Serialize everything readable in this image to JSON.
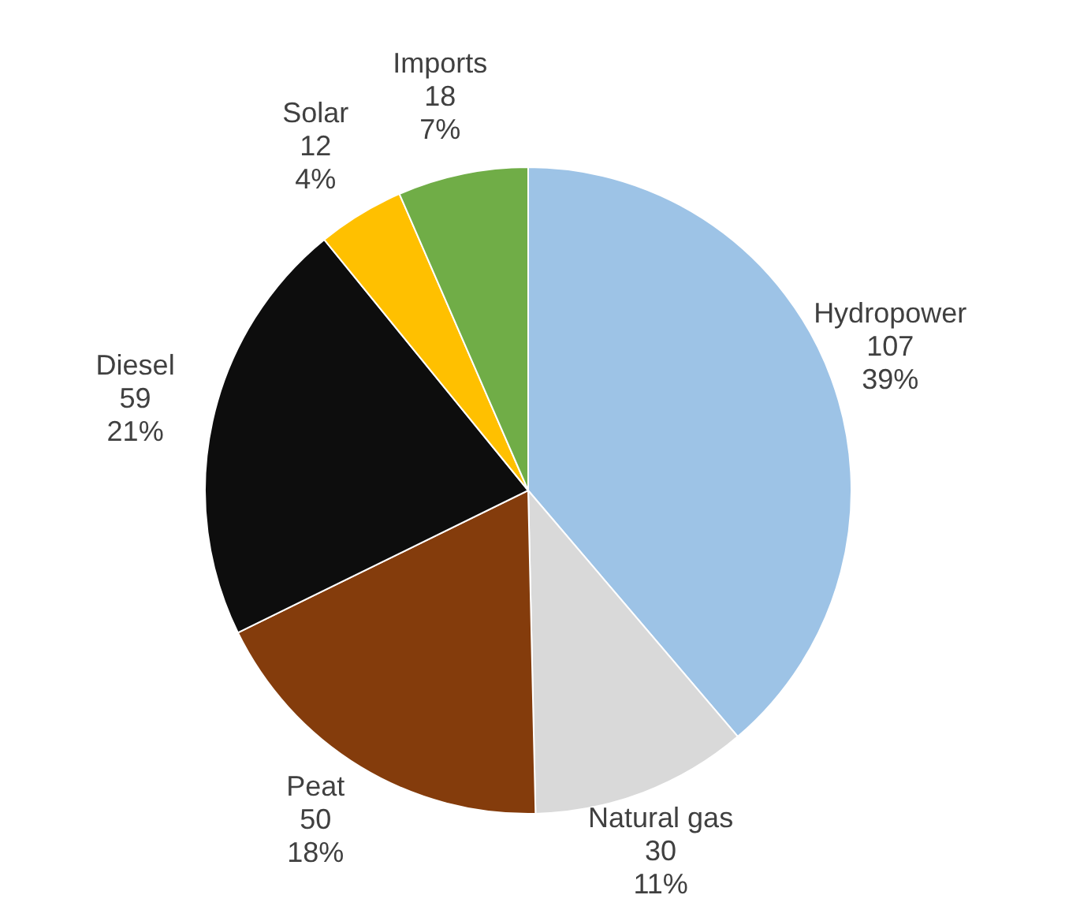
{
  "chart_data": {
    "type": "pie",
    "categories": [
      "Hydropower",
      "Natural gas",
      "Peat",
      "Diesel",
      "Solar",
      "Imports"
    ],
    "values": [
      107,
      30,
      50,
      59,
      12,
      18
    ],
    "value_labels": [
      "107\n39%",
      "30\n11%",
      "50\n18%",
      "59\n21%",
      "12\n4%",
      "18\n7%"
    ],
    "colors": [
      "#9dc3e6",
      "#d9d9d9",
      "#843c0c",
      "#0d0d0d",
      "#ffc000",
      "#70ad47"
    ],
    "data_labels": false
  }
}
